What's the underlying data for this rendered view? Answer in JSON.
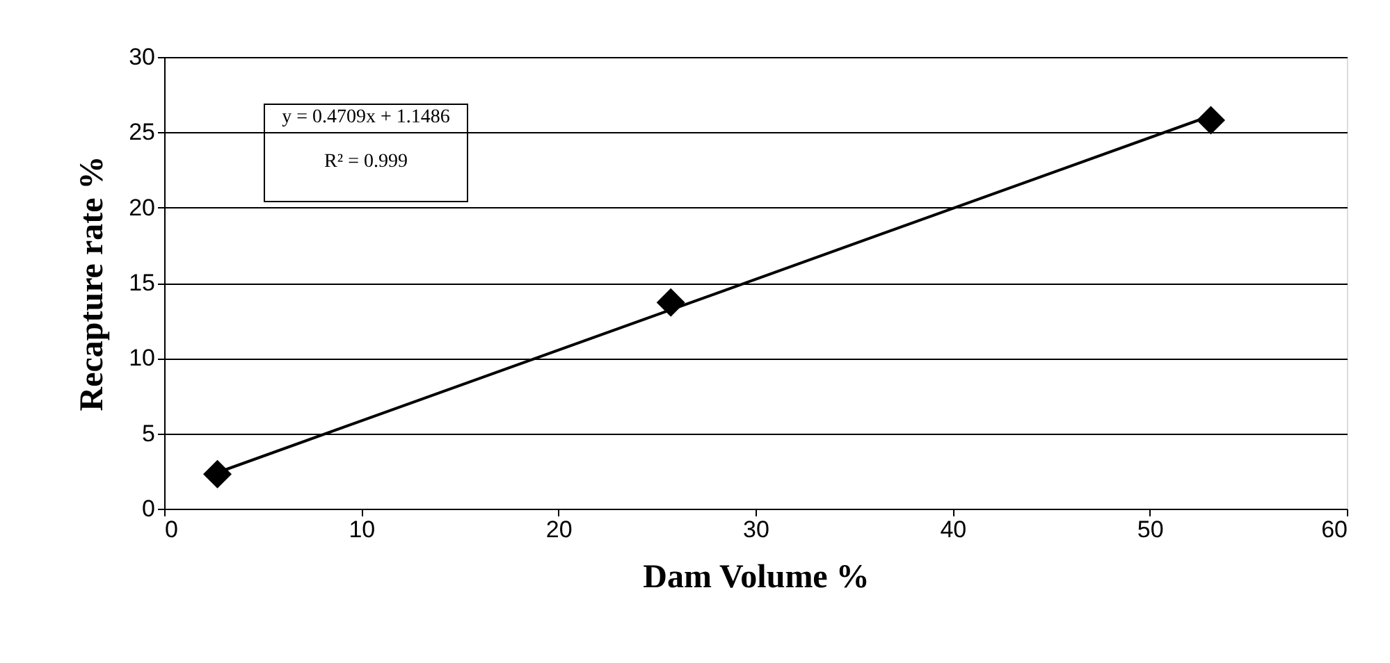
{
  "chart_data": {
    "type": "scatter",
    "xlabel": "Dam Volume %",
    "ylabel": "Recapture rate %",
    "x": [
      2.7,
      25.7,
      53.1
    ],
    "series": [
      {
        "color": "#000000",
        "marker": "diamond",
        "values": [
          2.3,
          13.7,
          25.8
        ]
      },
      {
        "type": "line",
        "color": "#000000",
        "x": [
          2.7,
          53.1
        ],
        "values": [
          2.4,
          26.1
        ]
      }
    ],
    "xlim": [
      0,
      60
    ],
    "xticks": [
      0,
      10,
      20,
      30,
      40,
      50,
      60
    ],
    "ylim": [
      0,
      30
    ],
    "yticks": [
      0,
      5,
      10,
      15,
      20,
      25,
      30
    ],
    "grid": "y",
    "annotations": [
      "y = 0.4709x + 1.1486",
      "R² = 0.999"
    ]
  }
}
